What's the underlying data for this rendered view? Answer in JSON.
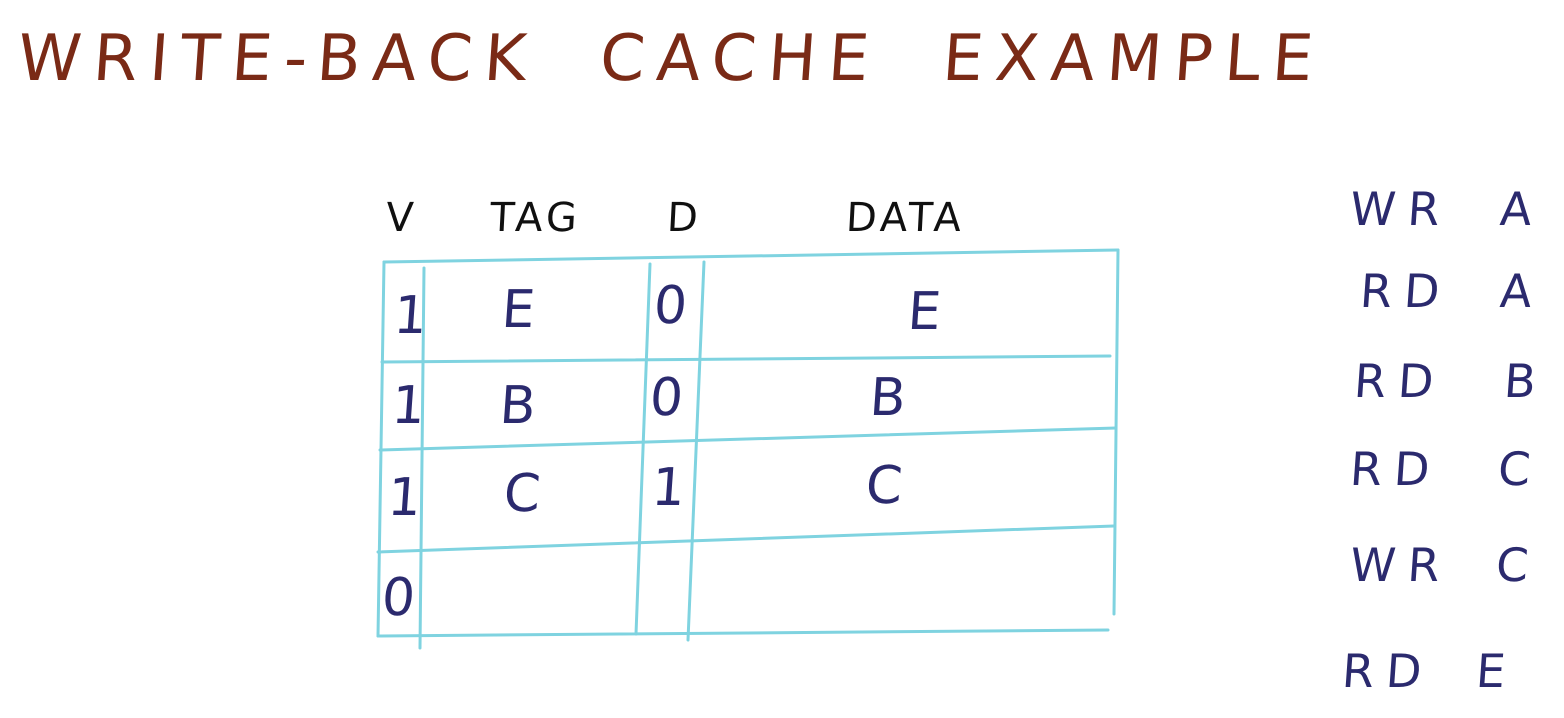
{
  "title": {
    "words": [
      "WRITE-BACK",
      "CACHE",
      "EXAMPLE"
    ]
  },
  "table": {
    "headers": {
      "v": "V",
      "tag": "TAG",
      "d": "D",
      "data": "DATA"
    },
    "rows": [
      {
        "v": "1",
        "tag": "E",
        "d": "0",
        "data": "E"
      },
      {
        "v": "1",
        "tag": "B",
        "d": "0",
        "data": "B"
      },
      {
        "v": "1",
        "tag": "C",
        "d": "1",
        "data": "C"
      },
      {
        "v": "0",
        "tag": "",
        "d": "",
        "data": ""
      }
    ]
  },
  "operations": [
    {
      "kind": "WR",
      "addr": "A"
    },
    {
      "kind": "RD",
      "addr": "A"
    },
    {
      "kind": "RD",
      "addr": "B"
    },
    {
      "kind": "RD",
      "addr": "C"
    },
    {
      "kind": "WR",
      "addr": "C"
    },
    {
      "kind": "RD",
      "addr": "E"
    }
  ],
  "colors": {
    "title": "#7a2a16",
    "grid": "#7fd3e0",
    "handwriting": "#2b2a6e",
    "headers": "#101010"
  }
}
